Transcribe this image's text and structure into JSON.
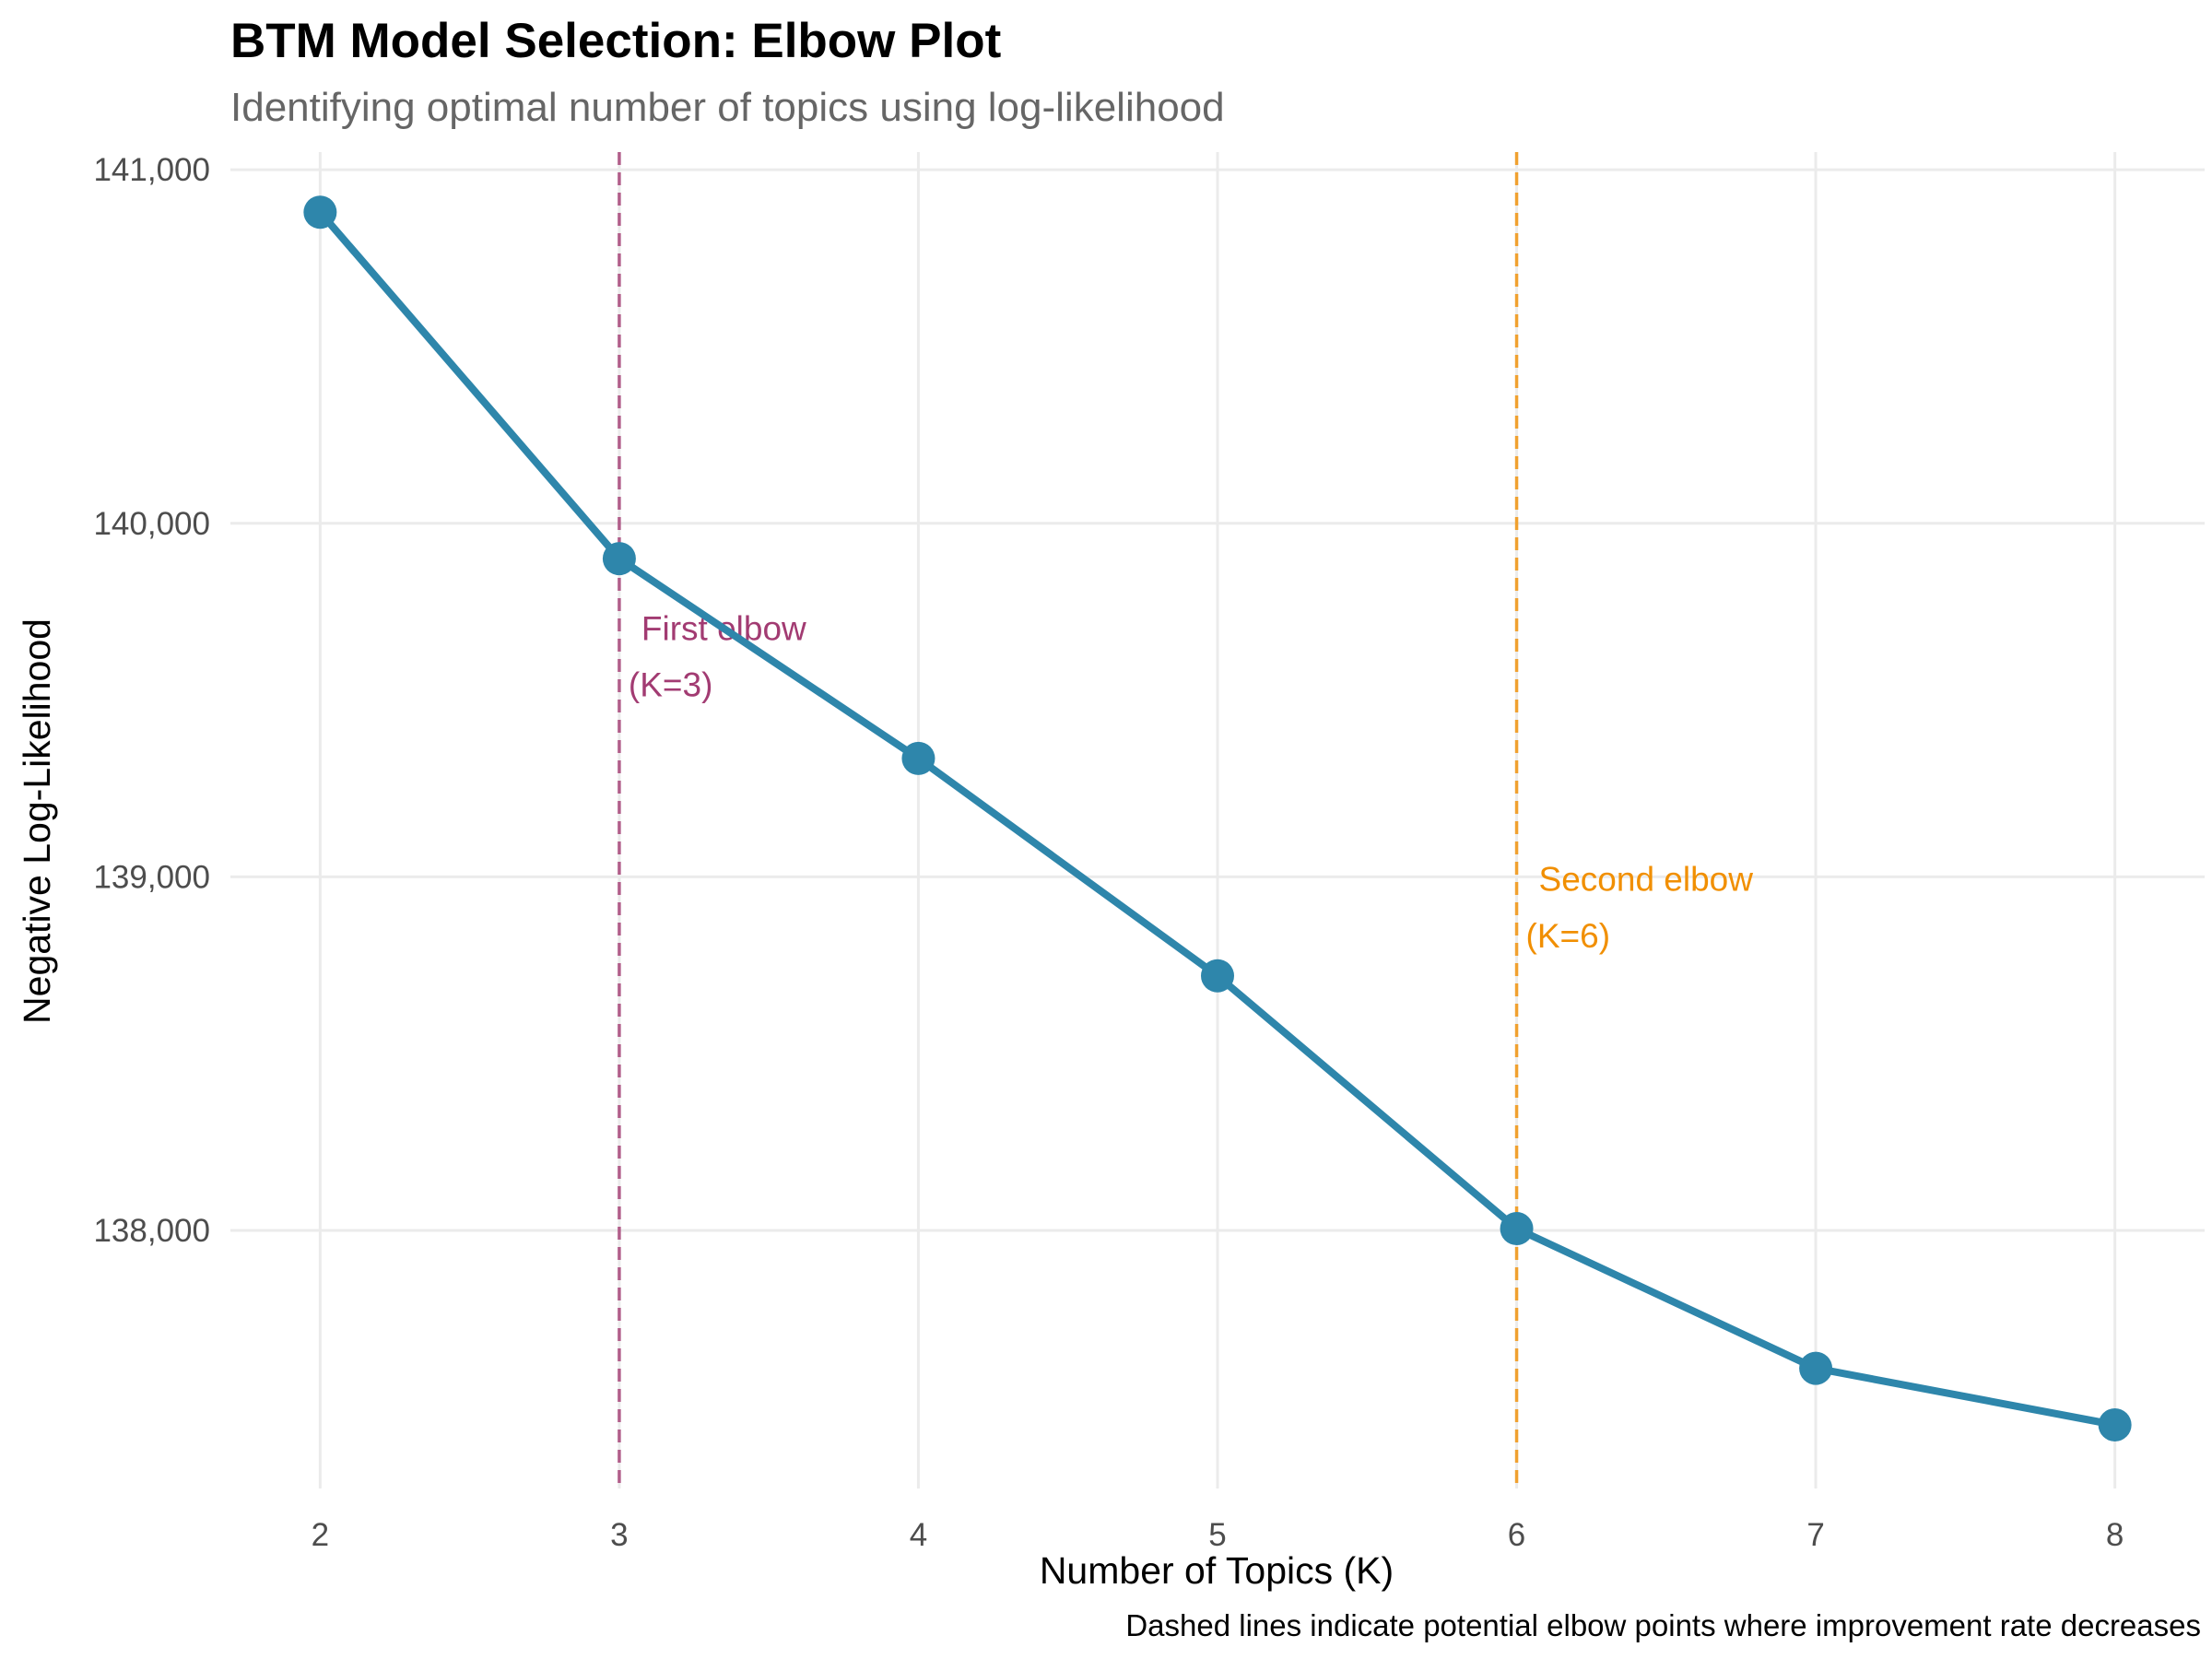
{
  "chart_data": {
    "type": "line",
    "title": "BTM Model Selection: Elbow Plot",
    "subtitle": "Identifying optimal number of topics using log-likelihood",
    "caption": "Dashed lines indicate potential elbow points where improvement rate decreases",
    "xlabel": "Number of Topics (K)",
    "ylabel": "Negative Log-Likelihood",
    "x": [
      2,
      3,
      4,
      5,
      6,
      7,
      8
    ],
    "series": [
      {
        "values": [
          140880,
          139900,
          139335,
          138720,
          138005,
          137610,
          137450
        ],
        "color": "#2E86AB"
      }
    ],
    "xlim": [
      1.7,
      8.3
    ],
    "ylim": [
      137270,
      141050
    ],
    "x_ticks": [
      2,
      3,
      4,
      5,
      6,
      7,
      8
    ],
    "x_tick_labels": [
      "2",
      "3",
      "4",
      "5",
      "6",
      "7",
      "8"
    ],
    "y_ticks": [
      138000,
      139000,
      140000,
      141000
    ],
    "y_tick_labels": [
      "138,000",
      "139,000",
      "140,000",
      "141,000"
    ],
    "grid": true,
    "legend": "none",
    "vlines": [
      {
        "x": 3,
        "color": "#A23B72",
        "label_line1": "First elbow",
        "label_line2": "(K=3)",
        "label_y": [
          139670,
          139510
        ]
      },
      {
        "x": 6,
        "color": "#F18F01",
        "label_line1": "Second elbow",
        "label_line2": "(K=6)",
        "label_y": [
          138960,
          138800
        ]
      }
    ]
  }
}
